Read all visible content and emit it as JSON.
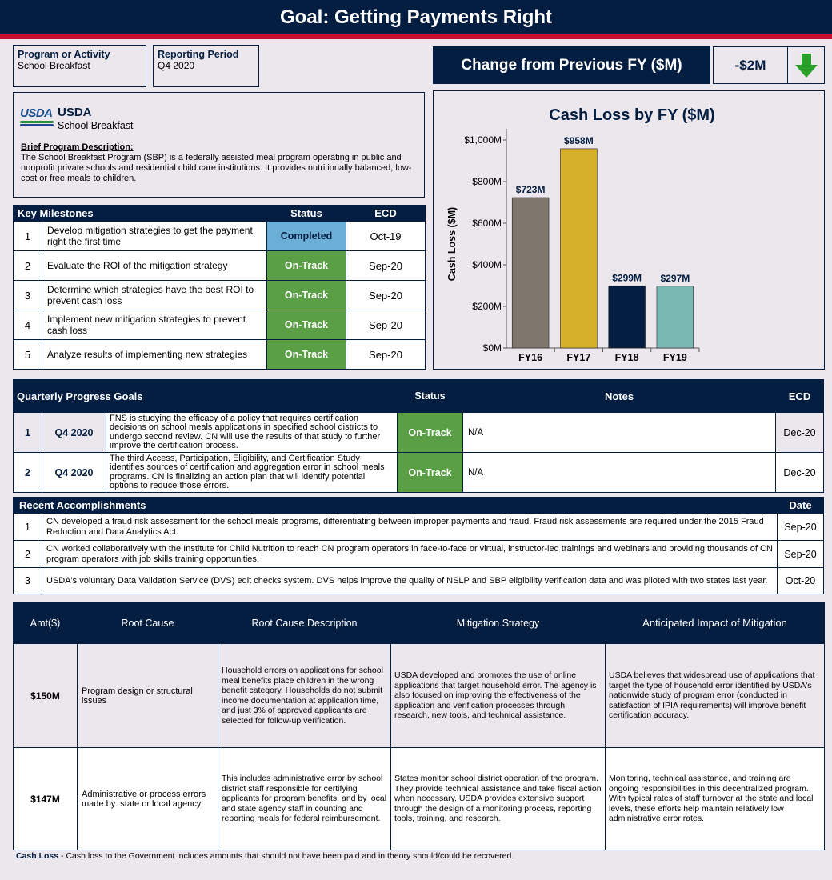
{
  "title": "Goal: Getting Payments Right",
  "program": {
    "label": "Program or Activity",
    "value": "School Breakfast"
  },
  "period": {
    "label": "Reporting Period",
    "value": "Q4 2020"
  },
  "change": {
    "label": "Change from Previous FY ($M)",
    "value": "-$2M",
    "arrow": "down-arrow-icon",
    "arrow_color": "#2aa02a"
  },
  "agency": {
    "logo_text": "USDA",
    "name": "USDA",
    "program": "School Breakfast",
    "desc_label": "Brief Program Description:",
    "desc": "The School Breakfast Program (SBP) is a federally assisted meal program operating in public and nonprofit private schools and residential child care institutions. It provides nutritionally balanced, low-cost or free meals to children."
  },
  "milestones": {
    "headers": [
      "Key Milestones",
      "Status",
      "ECD"
    ],
    "rows": [
      {
        "n": "1",
        "text": "Develop mitigation strategies to get the payment right the first time",
        "status": "Completed",
        "ecd": "Oct-19"
      },
      {
        "n": "2",
        "text": "Evaluate the ROI of the mitigation strategy",
        "status": "On-Track",
        "ecd": "Sep-20"
      },
      {
        "n": "3",
        "text": "Determine which strategies have the best ROI to prevent cash loss",
        "status": "On-Track",
        "ecd": "Sep-20"
      },
      {
        "n": "4",
        "text": "Implement new mitigation strategies to prevent cash loss",
        "status": "On-Track",
        "ecd": "Sep-20"
      },
      {
        "n": "5",
        "text": "Analyze results of implementing new strategies",
        "status": "On-Track",
        "ecd": "Sep-20"
      }
    ]
  },
  "chart_data": {
    "type": "bar",
    "title": "Cash Loss by FY ($M)",
    "ylabel": "Cash Loss ($M)",
    "xlabel": "",
    "categories": [
      "FY16",
      "FY17",
      "FY18",
      "FY19"
    ],
    "values": [
      723,
      958,
      299,
      297
    ],
    "value_labels": [
      "$723M",
      "$958M",
      "$299M",
      "$297M"
    ],
    "colors": [
      "#7f776e",
      "#d6b02a",
      "#041e42",
      "#7ab8b3"
    ],
    "ylim": [
      0,
      1000
    ],
    "yticks": [
      0,
      200,
      400,
      600,
      800,
      1000
    ],
    "ytick_labels": [
      "$0M",
      "$200M",
      "$400M",
      "$600M",
      "$800M",
      "$1,000M"
    ],
    "grid": false
  },
  "quarterly": {
    "headers": [
      "Quarterly Progress Goals",
      "Status",
      "Notes",
      "ECD"
    ],
    "rows": [
      {
        "n": "1",
        "q": "Q4 2020",
        "text": "FNS is studying the efficacy of a policy that requires certification decisions on school meals applications in specified school districts to undergo second review. CN will use the results of that study to further improve the certification process.",
        "status": "On-Track",
        "notes": "N/A",
        "ecd": "Dec-20"
      },
      {
        "n": "2",
        "q": "Q4 2020",
        "text": "The third Access, Participation, Eligibility, and Certification Study identifies sources of certification and aggregation error in school meals programs.  CN is finalizing an action plan that will identify potential options to reduce those errors.",
        "status": "On-Track",
        "notes": "N/A",
        "ecd": "Dec-20"
      }
    ]
  },
  "accomplishments": {
    "headers": [
      "Recent  Accomplishments",
      "Date"
    ],
    "rows": [
      {
        "n": "1",
        "text": "CN developed a fraud risk assessment for the school meals programs, differentiating between improper payments and fraud. Fraud risk assessments are required under the 2015 Fraud Reduction and Data Analytics Act.",
        "date": "Sep-20"
      },
      {
        "n": "2",
        "text": "CN worked collaboratively with the Institute for Child Nutrition to reach CN program operators in face-to-face or virtual, instructor-led trainings and webinars and providing thousands of CN program operators with job skills training opportunities.",
        "date": "Sep-20"
      },
      {
        "n": "3",
        "text": "USDA's voluntary Data Validation Service (DVS) edit checks system.  DVS helps improve the quality of NSLP and SBP eligibility verification data and was piloted with two states last year.",
        "date": "Oct-20"
      }
    ]
  },
  "rootcause": {
    "headers": [
      "Amt($)",
      "Root Cause",
      "Root Cause Description",
      "Mitigation Strategy",
      "Anticipated Impact of Mitigation"
    ],
    "rows": [
      {
        "amt": "$150M",
        "cause": "Program design or structural issues",
        "desc": "Household errors on applications for school meal benefits place children in the wrong benefit category. Households do not submit income documentation at application time, and just 3% of approved applicants are selected for follow-up verification.",
        "mitigation": "USDA developed and promotes the use of online applications that target household error. The agency is also focused on improving the effectiveness of the application and verification processes through research, new tools, and technical assistance.",
        "impact": "USDA believes that widespread use of applications that target the type of household error identified by USDA's nationwide study of program error (conducted in satisfaction of IPIA requirements) will improve benefit certification accuracy."
      },
      {
        "amt": "$147M",
        "cause": "Administrative or process errors made by: state or local agency",
        "desc": "This includes administrative error by school district staff responsible for certifying applicants for program benefits, and by local and state agency staff in counting and reporting meals for federal reimbursement.",
        "mitigation": "States monitor school district operation of the program. They provide technical assistance and take fiscal action when necessary. USDA provides extensive support through the design of a monitoring process, reporting tools, training, and research.",
        "impact": "Monitoring, technical assistance, and training are ongoing responsibilities in this decentralized program. With typical rates of staff turnover at the state and local levels, these efforts help maintain relatively low administrative error rates."
      }
    ]
  },
  "footnote": {
    "term": "Cash Loss",
    "text": " - Cash loss to the Government includes amounts that should not have been paid and in theory should/could be recovered."
  }
}
